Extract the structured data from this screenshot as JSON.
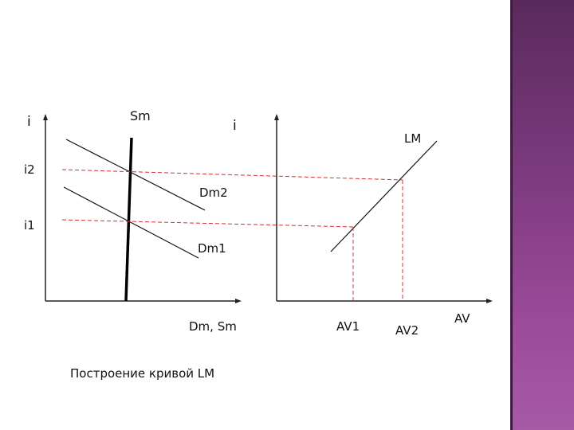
{
  "left_panel": {
    "y_axis_label": "i",
    "x_axis_label": "Dm, Sm",
    "supply_label": "Sm",
    "level_labels": [
      "i2",
      "i1"
    ],
    "curve_labels": [
      "Dm2",
      "Dm1"
    ]
  },
  "right_panel": {
    "y_axis_label": "i",
    "x_axis_label": "AV",
    "curve_label": "LM",
    "tick_labels": [
      "AV1",
      "AV2"
    ]
  },
  "caption": "Построение кривой LM",
  "colors": {
    "axes": "#111111",
    "guides": "#cc3333",
    "sidebar": "#7c3a7e"
  }
}
